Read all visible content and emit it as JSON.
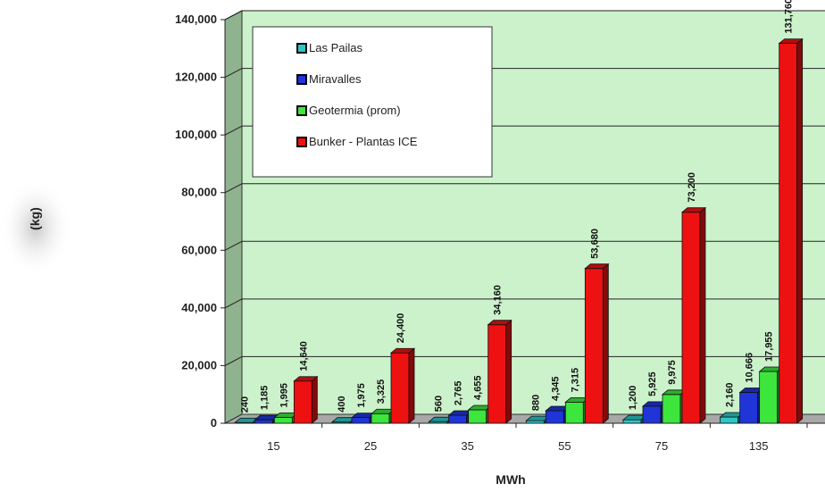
{
  "chart_data": {
    "type": "bar",
    "title": "",
    "xlabel": "MWh",
    "ylabel": "(kg)",
    "categories": [
      "15",
      "25",
      "35",
      "55",
      "75",
      "135"
    ],
    "ylim": [
      0,
      140000
    ],
    "yticks": [
      "0",
      "20,000",
      "40,000",
      "60,000",
      "80,000",
      "100,000",
      "120,000",
      "140,000"
    ],
    "series": [
      {
        "name": "Las Pailas",
        "color": "#2cc7c7",
        "values": [
          240,
          400,
          560,
          880,
          1200,
          2160
        ],
        "labels": [
          "240",
          "400",
          "560",
          "880",
          "1,200",
          "2,160"
        ]
      },
      {
        "name": "Miravalles",
        "color": "#1f35d8",
        "values": [
          1185,
          1975,
          2765,
          4345,
          5925,
          10666
        ],
        "labels": [
          "1,185",
          "1,975",
          "2,765",
          "4,345",
          "5,925",
          "10,666"
        ]
      },
      {
        "name": "Geotermia (prom)",
        "color": "#3de63d",
        "values": [
          1995,
          3325,
          4655,
          7315,
          9975,
          17955
        ],
        "labels": [
          "1,995",
          "3,325",
          "4,655",
          "7,315",
          "9,975",
          "17,955"
        ]
      },
      {
        "name": "Bunker - Plantas ICE",
        "color": "#ee1111",
        "values": [
          14640,
          24400,
          34160,
          53680,
          73200,
          131760
        ],
        "labels": [
          "14,640",
          "24,400",
          "34,160",
          "53,680",
          "73,200",
          "131,760"
        ]
      }
    ],
    "grid": true,
    "legend_position": "top-left"
  }
}
